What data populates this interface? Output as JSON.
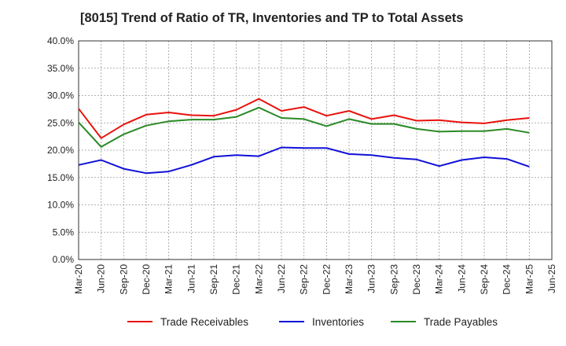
{
  "chart_data": {
    "type": "line",
    "title": "[8015]  Trend of Ratio of TR, Inventories and TP to Total Assets",
    "xlabel": "",
    "ylabel": "",
    "ylim": [
      0,
      40
    ],
    "y_ticks": [
      "0.0%",
      "5.0%",
      "10.0%",
      "15.0%",
      "20.0%",
      "25.0%",
      "30.0%",
      "35.0%",
      "40.0%"
    ],
    "x_tick_labels": [
      "Mar-20",
      "Jun-20",
      "Sep-20",
      "Dec-20",
      "Mar-21",
      "Jun-21",
      "Sep-21",
      "Dec-21",
      "Mar-22",
      "Jun-22",
      "Sep-22",
      "Dec-22",
      "Mar-23",
      "Jun-23",
      "Sep-23",
      "Dec-23",
      "Mar-24",
      "Jun-24",
      "Sep-24",
      "Dec-24",
      "Mar-25",
      "Jun-25"
    ],
    "x": [
      "Mar-20",
      "Jun-20",
      "Sep-20",
      "Dec-20",
      "Mar-21",
      "Jun-21",
      "Sep-21",
      "Dec-21",
      "Mar-22",
      "Jun-22",
      "Sep-22",
      "Dec-22",
      "Mar-23",
      "Jun-23",
      "Sep-23",
      "Dec-23",
      "Mar-24",
      "Jun-24",
      "Sep-24",
      "Dec-24",
      "Mar-25"
    ],
    "grid": true,
    "legend_position": "bottom",
    "series": [
      {
        "name": "Trade Receivables",
        "color": "#e8120c",
        "values": [
          27.6,
          22.2,
          24.7,
          26.5,
          26.9,
          26.4,
          26.3,
          27.4,
          29.4,
          27.2,
          27.9,
          26.3,
          27.2,
          25.7,
          26.4,
          25.4,
          25.5,
          25.1,
          24.9,
          25.5,
          25.9
        ]
      },
      {
        "name": "Inventories",
        "color": "#1010d8",
        "values": [
          17.3,
          18.2,
          16.6,
          15.8,
          16.1,
          17.3,
          18.8,
          19.1,
          18.9,
          20.5,
          20.4,
          20.4,
          19.3,
          19.1,
          18.6,
          18.3,
          17.1,
          18.2,
          18.7,
          18.4,
          17.0
        ]
      },
      {
        "name": "Trade Payables",
        "color": "#2a8a26",
        "values": [
          25.1,
          20.6,
          22.9,
          24.5,
          25.3,
          25.6,
          25.6,
          26.1,
          27.8,
          25.9,
          25.7,
          24.4,
          25.7,
          24.8,
          24.8,
          23.9,
          23.4,
          23.5,
          23.5,
          23.9,
          23.2
        ]
      }
    ]
  }
}
